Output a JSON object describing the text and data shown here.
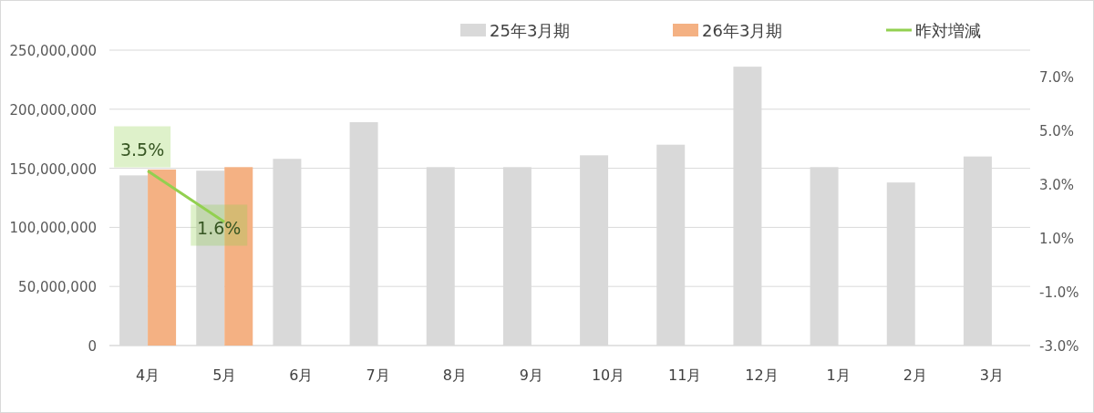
{
  "chart_data": {
    "type": "bar",
    "categories": [
      "4月",
      "5月",
      "6月",
      "7月",
      "8月",
      "9月",
      "10月",
      "11月",
      "12月",
      "1月",
      "2月",
      "3月"
    ],
    "series": [
      {
        "name": "25年3月期",
        "color": "#d9d9d9",
        "values": [
          144000000,
          148000000,
          158000000,
          189000000,
          151000000,
          151000000,
          161000000,
          170000000,
          236000000,
          151000000,
          138000000,
          160000000
        ]
      },
      {
        "name": "26年3月期",
        "color": "#f4b183",
        "values": [
          149000000,
          151000000,
          null,
          null,
          null,
          null,
          null,
          null,
          null,
          null,
          null,
          null
        ]
      },
      {
        "name": "昨対増減",
        "type": "line",
        "axis": "y2",
        "color": "#92d050",
        "values": [
          3.5,
          1.6,
          null,
          null,
          null,
          null,
          null,
          null,
          null,
          null,
          null,
          null
        ],
        "value_labels": [
          "3.5%",
          "1.6%",
          null,
          null,
          null,
          null,
          null,
          null,
          null,
          null,
          null,
          null
        ]
      }
    ],
    "ylim": [
      0,
      250000000
    ],
    "yticks": [
      0,
      {
        "value": 50000000,
        "label": "50,000,000"
      },
      {
        "value": 100000000,
        "label": "100,000,000"
      },
      {
        "value": 150000000,
        "label": "150,000,000"
      },
      {
        "value": 200000000,
        "label": "200,000,000"
      },
      {
        "value": 250000000,
        "label": "250,000,000"
      }
    ],
    "y2lim": [
      -3,
      8
    ],
    "y2ticks": [
      {
        "value": -3,
        "label": "-3.0%"
      },
      {
        "value": -1,
        "label": "-1.0%"
      },
      {
        "value": 1,
        "label": "1.0%"
      },
      {
        "value": 3,
        "label": "3.0%"
      },
      {
        "value": 5,
        "label": "5.0%"
      },
      {
        "value": 7,
        "label": "7.0%"
      }
    ],
    "grid": "y",
    "legend": "top",
    "marker": "none"
  }
}
